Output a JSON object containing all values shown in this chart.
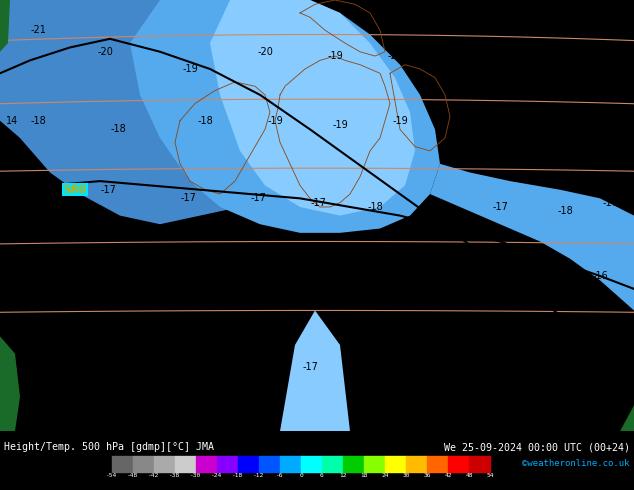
{
  "title_left": "Height/Temp. 500 hPa [gdmp][°C] JMA",
  "title_right": "We 25-09-2024 00:00 UTC (00+24)",
  "credit": "©weatheronline.co.uk",
  "bg_cyan": "#00e5ff",
  "blue_dark": "#4488cc",
  "blue_mid": "#55aaee",
  "blue_light": "#88ccff",
  "blue_lighter": "#aaddf8",
  "green_dark": "#1a6b2a",
  "fig_width": 6.34,
  "fig_height": 4.9,
  "colorbar_colors": [
    "#666666",
    "#888888",
    "#aaaaaa",
    "#cccccc",
    "#cc00cc",
    "#8800ff",
    "#0000ff",
    "#0055ff",
    "#00aaff",
    "#00ffff",
    "#00ffaa",
    "#00cc00",
    "#88ff00",
    "#ffff00",
    "#ffbb00",
    "#ff6600",
    "#ff0000",
    "#cc0000",
    "#880000"
  ],
  "colorbar_ticks": [
    -54,
    -48,
    -42,
    -38,
    -30,
    -24,
    -18,
    -12,
    -6,
    0,
    6,
    12,
    18,
    24,
    30,
    36,
    42,
    48,
    54
  ]
}
